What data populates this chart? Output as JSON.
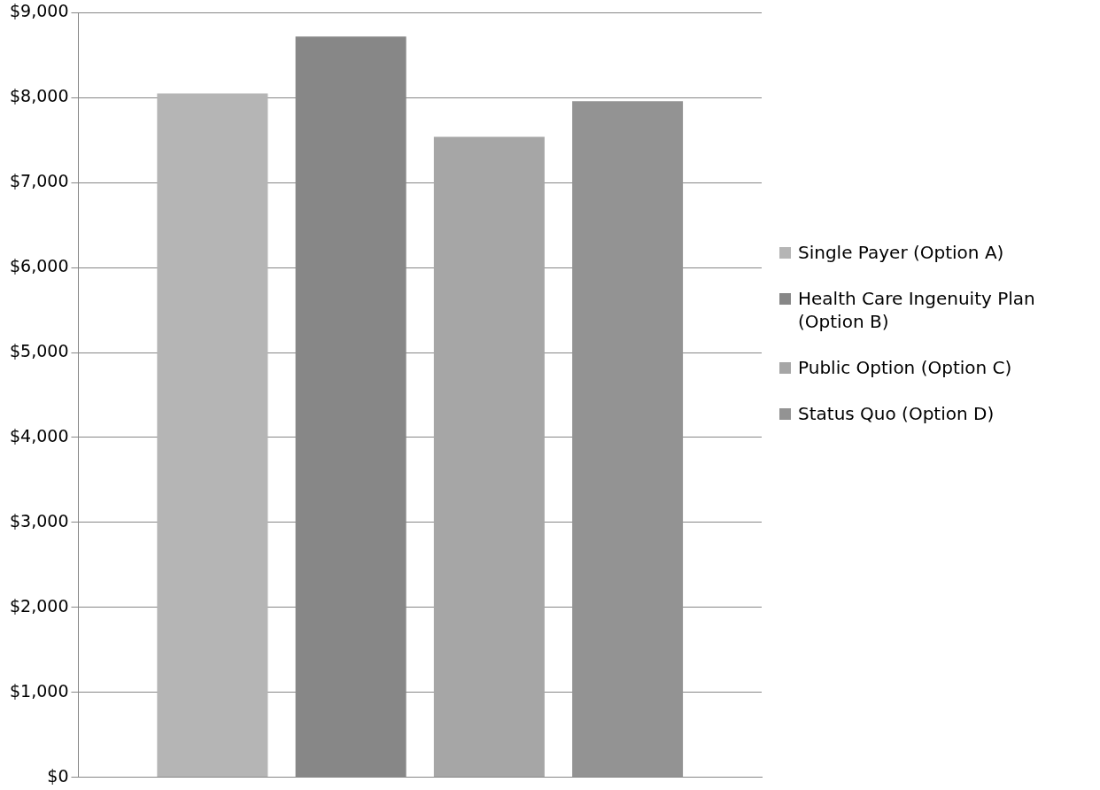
{
  "chart_data": {
    "type": "bar",
    "categories": [
      null
    ],
    "series": [
      {
        "name": "Single Payer (Option A)",
        "color": "#b5b5b5",
        "values": [
          8050
        ]
      },
      {
        "name": "Health Care Ingenuity Plan (Option B)",
        "color": "#878787",
        "values": [
          8720
        ]
      },
      {
        "name": "Public Option (Option C)",
        "color": "#a6a6a6",
        "values": [
          7540
        ]
      },
      {
        "name": "Status Quo (Option D)",
        "color": "#939393",
        "values": [
          7960
        ]
      }
    ],
    "ylim": [
      0,
      9000
    ],
    "yticks": [
      {
        "value": 0,
        "label": "$0"
      },
      {
        "value": 1000,
        "label": "$1,000"
      },
      {
        "value": 2000,
        "label": "$2,000"
      },
      {
        "value": 3000,
        "label": "$3,000"
      },
      {
        "value": 4000,
        "label": "$4,000"
      },
      {
        "value": 5000,
        "label": "$5,000"
      },
      {
        "value": 6000,
        "label": "$6,000"
      },
      {
        "value": 7000,
        "label": "$7,000"
      },
      {
        "value": 8000,
        "label": "$8,000"
      },
      {
        "value": 9000,
        "label": "$9,000"
      }
    ],
    "grid": "y",
    "legend": "right",
    "tick_labels": "y"
  }
}
